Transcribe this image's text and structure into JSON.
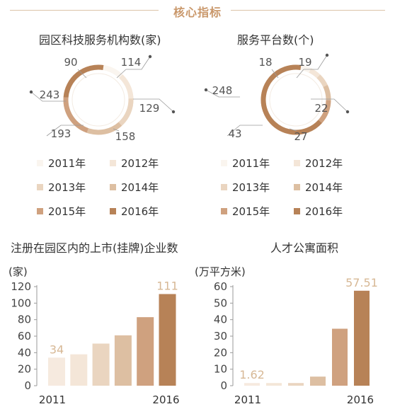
{
  "header": {
    "title": "核心指标"
  },
  "colors": {
    "ring_track": "#f0e6da",
    "series": [
      "#faf5ef",
      "#f4e6d8",
      "#ead5c0",
      "#ddbfa2",
      "#cfa17f",
      "#b78257"
    ],
    "bar_highlight": "#d7b895",
    "accent": "#c9976a"
  },
  "legend": [
    "2011年",
    "2012年",
    "2013年",
    "2014年",
    "2015年",
    "2016年"
  ],
  "chart_data": [
    {
      "type": "pie",
      "title": "园区科技服务机构数(家)",
      "categories": [
        "2011",
        "2012",
        "2013",
        "2014",
        "2015",
        "2016"
      ],
      "values": [
        90,
        114,
        129,
        158,
        193,
        243
      ]
    },
    {
      "type": "pie",
      "title": "服务平台数(个)",
      "categories": [
        "2011",
        "2012",
        "2013",
        "2014",
        "2015",
        "2016"
      ],
      "values": [
        18,
        19,
        22,
        27,
        43,
        248
      ]
    },
    {
      "type": "bar",
      "title": "注册在园区内的上市(挂牌)企业数",
      "ylabel": "(家)",
      "categories": [
        "2011",
        "2012",
        "2013",
        "2014",
        "2015",
        "2016"
      ],
      "tick_labels": [
        "2011",
        "2016"
      ],
      "values": [
        34,
        38,
        51,
        61,
        83,
        111
      ],
      "labeled": [
        "34",
        "",
        "",
        "",
        "",
        "111"
      ],
      "yticks": [
        0,
        20,
        40,
        60,
        80,
        100,
        120
      ],
      "ylim": [
        0,
        120
      ]
    },
    {
      "type": "bar",
      "title": "人才公寓面积",
      "ylabel": "(万平方米)",
      "categories": [
        "2011",
        "2012",
        "2013",
        "2014",
        "2015",
        "2016"
      ],
      "tick_labels": [
        "2011",
        "2016"
      ],
      "values": [
        1.62,
        1.62,
        1.62,
        5.5,
        34.5,
        57.51
      ],
      "labeled": [
        "1.62",
        "",
        "",
        "",
        "",
        "57.51"
      ],
      "yticks": [
        0,
        10,
        20,
        30,
        40,
        50,
        60
      ],
      "ylim": [
        0,
        60
      ]
    }
  ]
}
